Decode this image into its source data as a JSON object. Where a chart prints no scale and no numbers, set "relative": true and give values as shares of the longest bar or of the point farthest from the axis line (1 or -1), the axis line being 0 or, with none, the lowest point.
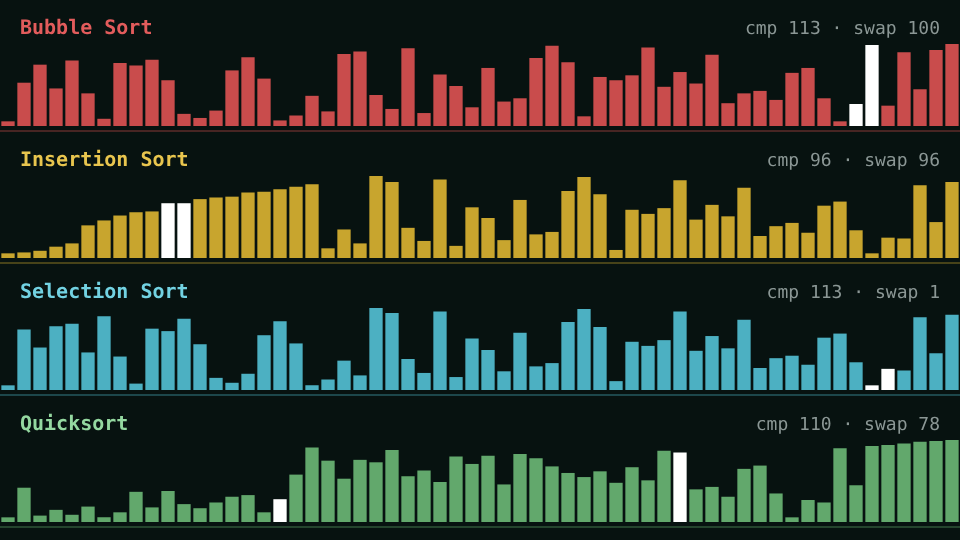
{
  "chart_data": [
    {
      "type": "bar",
      "title": "Bubble Sort",
      "annotations": [
        "cmp 113 · swap 100"
      ],
      "relative": true,
      "categories": [
        null,
        null,
        null,
        null,
        null,
        null,
        null,
        null,
        null,
        null,
        null,
        null,
        null,
        null,
        null,
        null,
        null,
        null,
        null,
        null,
        null,
        null,
        null,
        null,
        null,
        null,
        null,
        null,
        null,
        null,
        null,
        null,
        null,
        null,
        null,
        null,
        null,
        null,
        null,
        null,
        null,
        null,
        null,
        null,
        null,
        null,
        null,
        null,
        null,
        null,
        null,
        null,
        null,
        null,
        null,
        null,
        null,
        null,
        null,
        null
      ],
      "values": [
        0.03,
        0.52,
        0.74,
        0.45,
        0.79,
        0.39,
        0.08,
        0.76,
        0.73,
        0.8,
        0.55,
        0.14,
        0.09,
        0.18,
        0.67,
        0.83,
        0.57,
        0.06,
        0.12,
        0.36,
        0.17,
        0.87,
        0.9,
        0.37,
        0.2,
        0.94,
        0.15,
        0.62,
        0.48,
        0.22,
        0.7,
        0.29,
        0.33,
        0.82,
        0.97,
        0.77,
        0.11,
        0.59,
        0.55,
        0.61,
        0.95,
        0.47,
        0.65,
        0.51,
        0.86,
        0.27,
        0.39,
        0.42,
        0.31,
        0.64,
        0.7,
        0.33,
        0.03,
        0.26,
        0.98,
        0.24,
        0.89,
        0.44,
        0.92,
        1
      ],
      "colors": [
        "#c94c4c",
        "#c94c4c",
        "#c94c4c",
        "#c94c4c",
        "#c94c4c",
        "#c94c4c",
        "#c94c4c",
        "#c94c4c",
        "#c94c4c",
        "#c94c4c",
        "#c94c4c",
        "#c94c4c",
        "#c94c4c",
        "#c94c4c",
        "#c94c4c",
        "#c94c4c",
        "#c94c4c",
        "#c94c4c",
        "#c94c4c",
        "#c94c4c",
        "#c94c4c",
        "#c94c4c",
        "#c94c4c",
        "#c94c4c",
        "#c94c4c",
        "#c94c4c",
        "#c94c4c",
        "#c94c4c",
        "#c94c4c",
        "#c94c4c",
        "#c94c4c",
        "#c94c4c",
        "#c94c4c",
        "#c94c4c",
        "#c94c4c",
        "#c94c4c",
        "#c94c4c",
        "#c94c4c",
        "#c94c4c",
        "#c94c4c",
        "#c94c4c",
        "#c94c4c",
        "#c94c4c",
        "#c94c4c",
        "#c94c4c",
        "#c94c4c",
        "#c94c4c",
        "#c94c4c",
        "#c94c4c",
        "#c94c4c",
        "#c94c4c",
        "#c94c4c",
        "#c94c4c",
        "#ffffff",
        "#ffffff",
        "#c94c4c",
        "#c94c4c",
        "#c94c4c",
        "#c94c4c",
        "#c94c4c"
      ]
    },
    {
      "type": "bar",
      "title": "Insertion Sort",
      "annotations": [
        "cmp 96 · swap 96"
      ],
      "relative": true,
      "categories": [
        null,
        null,
        null,
        null,
        null,
        null,
        null,
        null,
        null,
        null,
        null,
        null,
        null,
        null,
        null,
        null,
        null,
        null,
        null,
        null,
        null,
        null,
        null,
        null,
        null,
        null,
        null,
        null,
        null,
        null,
        null,
        null,
        null,
        null,
        null,
        null,
        null,
        null,
        null,
        null,
        null,
        null,
        null,
        null,
        null,
        null,
        null,
        null,
        null,
        null,
        null,
        null,
        null,
        null,
        null,
        null,
        null,
        null,
        null,
        null
      ],
      "values": [
        0.03,
        0.06,
        0.08,
        0.13,
        0.17,
        0.39,
        0.45,
        0.51,
        0.55,
        0.56,
        0.66,
        0.66,
        0.71,
        0.73,
        0.74,
        0.79,
        0.8,
        0.83,
        0.86,
        0.89,
        0.11,
        0.34,
        0.17,
        1,
        0.92,
        0.36,
        0.2,
        0.95,
        0.14,
        0.61,
        0.48,
        0.21,
        0.7,
        0.28,
        0.31,
        0.81,
        0.98,
        0.77,
        0.09,
        0.58,
        0.53,
        0.6,
        0.94,
        0.46,
        0.64,
        0.5,
        0.85,
        0.26,
        0.38,
        0.42,
        0.3,
        0.63,
        0.68,
        0.33,
        0.03,
        0.24,
        0.23,
        0.88,
        0.43,
        0.92
      ],
      "colors": [
        "#c8a52e",
        "#c8a52e",
        "#c8a52e",
        "#c8a52e",
        "#c8a52e",
        "#c8a52e",
        "#c8a52e",
        "#c8a52e",
        "#c8a52e",
        "#c8a52e",
        "#ffffff",
        "#ffffff",
        "#c8a52e",
        "#c8a52e",
        "#c8a52e",
        "#c8a52e",
        "#c8a52e",
        "#c8a52e",
        "#c8a52e",
        "#c8a52e",
        "#c8a52e",
        "#c8a52e",
        "#c8a52e",
        "#c8a52e",
        "#c8a52e",
        "#c8a52e",
        "#c8a52e",
        "#c8a52e",
        "#c8a52e",
        "#c8a52e",
        "#c8a52e",
        "#c8a52e",
        "#c8a52e",
        "#c8a52e",
        "#c8a52e",
        "#c8a52e",
        "#c8a52e",
        "#c8a52e",
        "#c8a52e",
        "#c8a52e",
        "#c8a52e",
        "#c8a52e",
        "#c8a52e",
        "#c8a52e",
        "#c8a52e",
        "#c8a52e",
        "#c8a52e",
        "#c8a52e",
        "#c8a52e",
        "#c8a52e",
        "#c8a52e",
        "#c8a52e",
        "#c8a52e",
        "#c8a52e",
        "#c8a52e",
        "#c8a52e",
        "#c8a52e",
        "#c8a52e",
        "#c8a52e",
        "#c8a52e"
      ]
    },
    {
      "type": "bar",
      "title": "Selection Sort",
      "annotations": [
        "cmp 113 · swap 1"
      ],
      "relative": true,
      "categories": [
        null,
        null,
        null,
        null,
        null,
        null,
        null,
        null,
        null,
        null,
        null,
        null,
        null,
        null,
        null,
        null,
        null,
        null,
        null,
        null,
        null,
        null,
        null,
        null,
        null,
        null,
        null,
        null,
        null,
        null,
        null,
        null,
        null,
        null,
        null,
        null,
        null,
        null,
        null,
        null,
        null,
        null,
        null,
        null,
        null,
        null,
        null,
        null,
        null,
        null,
        null,
        null,
        null,
        null,
        null,
        null,
        null,
        null,
        null,
        null
      ],
      "values": [
        0.03,
        0.73,
        0.51,
        0.77,
        0.8,
        0.45,
        0.89,
        0.4,
        0.07,
        0.74,
        0.71,
        0.86,
        0.55,
        0.14,
        0.08,
        0.19,
        0.66,
        0.83,
        0.56,
        0.05,
        0.12,
        0.35,
        0.17,
        1,
        0.93,
        0.37,
        0.2,
        0.95,
        0.15,
        0.62,
        0.48,
        0.22,
        0.69,
        0.28,
        0.32,
        0.82,
        0.98,
        0.76,
        0.1,
        0.58,
        0.53,
        0.6,
        0.95,
        0.47,
        0.65,
        0.5,
        0.85,
        0.26,
        0.38,
        0.41,
        0.3,
        0.63,
        0.68,
        0.33,
        0.03,
        0.25,
        0.23,
        0.88,
        0.44,
        0.91
      ],
      "colors": [
        "#4cb0c2",
        "#4cb0c2",
        "#4cb0c2",
        "#4cb0c2",
        "#4cb0c2",
        "#4cb0c2",
        "#4cb0c2",
        "#4cb0c2",
        "#4cb0c2",
        "#4cb0c2",
        "#4cb0c2",
        "#4cb0c2",
        "#4cb0c2",
        "#4cb0c2",
        "#4cb0c2",
        "#4cb0c2",
        "#4cb0c2",
        "#4cb0c2",
        "#4cb0c2",
        "#4cb0c2",
        "#4cb0c2",
        "#4cb0c2",
        "#4cb0c2",
        "#4cb0c2",
        "#4cb0c2",
        "#4cb0c2",
        "#4cb0c2",
        "#4cb0c2",
        "#4cb0c2",
        "#4cb0c2",
        "#4cb0c2",
        "#4cb0c2",
        "#4cb0c2",
        "#4cb0c2",
        "#4cb0c2",
        "#4cb0c2",
        "#4cb0c2",
        "#4cb0c2",
        "#4cb0c2",
        "#4cb0c2",
        "#4cb0c2",
        "#4cb0c2",
        "#4cb0c2",
        "#4cb0c2",
        "#4cb0c2",
        "#4cb0c2",
        "#4cb0c2",
        "#4cb0c2",
        "#4cb0c2",
        "#4cb0c2",
        "#4cb0c2",
        "#4cb0c2",
        "#4cb0c2",
        "#4cb0c2",
        "#ffffff",
        "#ffffff",
        "#4cb0c2",
        "#4cb0c2",
        "#4cb0c2",
        "#4cb0c2"
      ]
    },
    {
      "type": "bar",
      "title": "Quicksort",
      "annotations": [
        "cmp 110 · swap 78"
      ],
      "relative": true,
      "categories": [
        null,
        null,
        null,
        null,
        null,
        null,
        null,
        null,
        null,
        null,
        null,
        null,
        null,
        null,
        null,
        null,
        null,
        null,
        null,
        null,
        null,
        null,
        null,
        null,
        null,
        null,
        null,
        null,
        null,
        null,
        null,
        null,
        null,
        null,
        null,
        null,
        null,
        null,
        null,
        null,
        null,
        null,
        null,
        null,
        null,
        null,
        null,
        null,
        null,
        null,
        null,
        null,
        null,
        null,
        null,
        null,
        null,
        null,
        null,
        null
      ],
      "values": [
        0.03,
        0.41,
        0.07,
        0.14,
        0.08,
        0.18,
        0.05,
        0.11,
        0.36,
        0.17,
        0.37,
        0.21,
        0.16,
        0.23,
        0.3,
        0.32,
        0.11,
        0.27,
        0.57,
        0.9,
        0.74,
        0.52,
        0.75,
        0.72,
        0.87,
        0.55,
        0.62,
        0.48,
        0.79,
        0.7,
        0.8,
        0.45,
        0.82,
        0.77,
        0.67,
        0.59,
        0.54,
        0.61,
        0.47,
        0.66,
        0.5,
        0.86,
        0.84,
        0.39,
        0.42,
        0.3,
        0.64,
        0.68,
        0.34,
        0.03,
        0.26,
        0.23,
        0.89,
        0.44,
        0.92,
        0.93,
        0.95,
        0.97,
        0.98,
        1
      ],
      "colors": [
        "#62a86c",
        "#62a86c",
        "#62a86c",
        "#62a86c",
        "#62a86c",
        "#62a86c",
        "#62a86c",
        "#62a86c",
        "#62a86c",
        "#62a86c",
        "#62a86c",
        "#62a86c",
        "#62a86c",
        "#62a86c",
        "#62a86c",
        "#62a86c",
        "#62a86c",
        "#ffffff",
        "#62a86c",
        "#62a86c",
        "#62a86c",
        "#62a86c",
        "#62a86c",
        "#62a86c",
        "#62a86c",
        "#62a86c",
        "#62a86c",
        "#62a86c",
        "#62a86c",
        "#62a86c",
        "#62a86c",
        "#62a86c",
        "#62a86c",
        "#62a86c",
        "#62a86c",
        "#62a86c",
        "#62a86c",
        "#62a86c",
        "#62a86c",
        "#62a86c",
        "#62a86c",
        "#62a86c",
        "#ffffff",
        "#62a86c",
        "#62a86c",
        "#62a86c",
        "#62a86c",
        "#62a86c",
        "#62a86c",
        "#62a86c",
        "#62a86c",
        "#62a86c",
        "#62a86c",
        "#62a86c",
        "#62a86c",
        "#62a86c",
        "#62a86c",
        "#62a86c",
        "#62a86c",
        "#62a86c"
      ]
    }
  ]
}
